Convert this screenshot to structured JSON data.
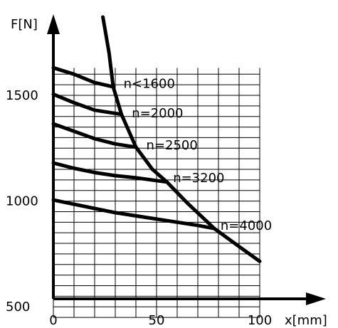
{
  "chart_data": {
    "type": "line",
    "xlabel": "x[mm]",
    "ylabel": "F[N]",
    "xlim": [
      0,
      100
    ],
    "ylim": [
      420,
      1870
    ],
    "x_ticks": [
      0,
      50,
      100
    ],
    "y_ticks": [
      500,
      1000,
      1500
    ],
    "grid": true,
    "grid_x_step": 10,
    "grid_y_step": 50,
    "grid_x_range": [
      0,
      100
    ],
    "grid_y_range": [
      450,
      1630
    ],
    "series": [
      {
        "name": "n<1600",
        "x": [
          0,
          10,
          20,
          29
        ],
        "y": [
          1630,
          1600,
          1560,
          1540
        ]
      },
      {
        "name": "n=2000",
        "x": [
          0,
          10,
          20,
          33
        ],
        "y": [
          1505,
          1465,
          1430,
          1410
        ]
      },
      {
        "name": "n=2500",
        "x": [
          0,
          10,
          20,
          30,
          40
        ],
        "y": [
          1365,
          1330,
          1295,
          1270,
          1255
        ]
      },
      {
        "name": "n=3200",
        "x": [
          0,
          10,
          20,
          30,
          40,
          55
        ],
        "y": [
          1180,
          1155,
          1135,
          1120,
          1110,
          1090
        ]
      },
      {
        "name": "n=4000",
        "x": [
          0,
          10,
          20,
          30,
          40,
          50,
          60,
          70,
          78
        ],
        "y": [
          1005,
          985,
          965,
          945,
          930,
          915,
          900,
          885,
          870
        ]
      },
      {
        "name": "",
        "x": [
          24,
          27,
          29,
          33,
          40,
          48,
          55,
          65,
          78,
          90,
          100
        ],
        "y": [
          1870,
          1700,
          1540,
          1410,
          1255,
          1150,
          1090,
          990,
          870,
          785,
          715
        ]
      }
    ],
    "labels": [
      {
        "text": "n<1600",
        "x": 34,
        "y": 1555
      },
      {
        "text": "n=2000",
        "x": 38,
        "y": 1415
      },
      {
        "text": "n=2500",
        "x": 45,
        "y": 1265
      },
      {
        "text": "n=3200",
        "x": 58,
        "y": 1110
      },
      {
        "text": "n=4000",
        "x": 81,
        "y": 885
      }
    ]
  }
}
